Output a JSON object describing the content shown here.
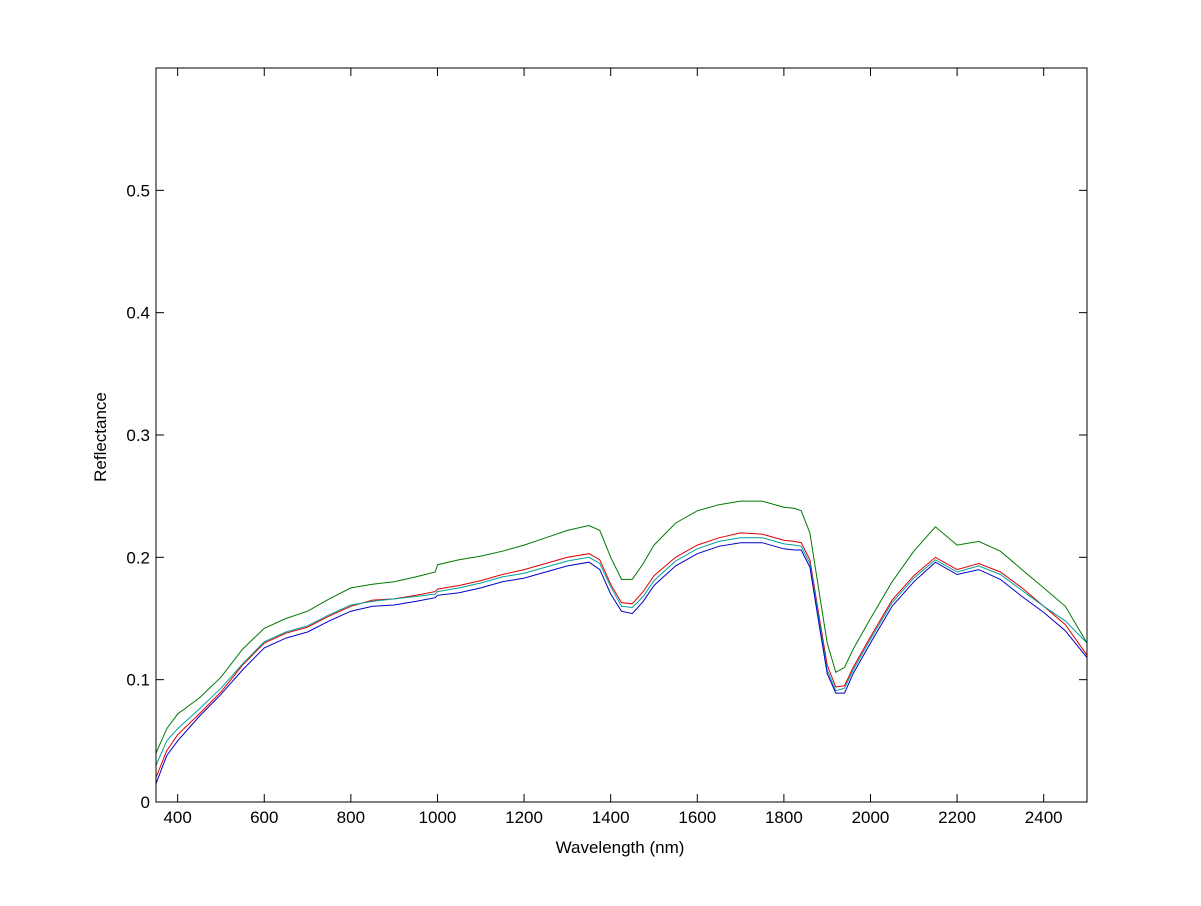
{
  "chart_data": {
    "type": "line",
    "title": "",
    "xlabel": "Wavelength (nm)",
    "ylabel": "Reflectance",
    "xlim": [
      350,
      2500
    ],
    "ylim": [
      0,
      0.6
    ],
    "x_ticks": [
      400,
      600,
      800,
      1000,
      1200,
      1400,
      1600,
      1800,
      2000,
      2200,
      2400
    ],
    "y_ticks": [
      0,
      0.1,
      0.2,
      0.3,
      0.4,
      0.5
    ],
    "x_tick_labels": [
      "400",
      "600",
      "800",
      "1000",
      "1200",
      "1400",
      "1600",
      "1800",
      "2000",
      "2200",
      "2400"
    ],
    "y_tick_labels": [
      "0",
      "0.1",
      "0.2",
      "0.3",
      "0.4",
      "0.5"
    ],
    "grid": false,
    "legend": "none",
    "x": [
      350,
      375,
      400,
      450,
      500,
      550,
      600,
      650,
      700,
      750,
      800,
      850,
      900,
      950,
      995,
      1000,
      1050,
      1100,
      1150,
      1200,
      1250,
      1300,
      1350,
      1375,
      1400,
      1425,
      1450,
      1475,
      1500,
      1550,
      1600,
      1650,
      1700,
      1750,
      1800,
      1825,
      1840,
      1860,
      1880,
      1900,
      1920,
      1940,
      1960,
      2000,
      2050,
      2100,
      2150,
      2200,
      2250,
      2300,
      2350,
      2400,
      2450,
      2500
    ],
    "series": [
      {
        "color": "#007a00",
        "values": [
          0.04,
          0.06,
          0.072,
          0.085,
          0.102,
          0.125,
          0.142,
          0.15,
          0.156,
          0.166,
          0.175,
          0.178,
          0.18,
          0.184,
          0.188,
          0.194,
          0.198,
          0.201,
          0.205,
          0.21,
          0.216,
          0.222,
          0.226,
          0.222,
          0.2,
          0.182,
          0.182,
          0.195,
          0.21,
          0.228,
          0.238,
          0.243,
          0.246,
          0.246,
          0.241,
          0.24,
          0.238,
          0.22,
          0.175,
          0.13,
          0.106,
          0.11,
          0.125,
          0.15,
          0.18,
          0.205,
          0.225,
          0.21,
          0.213,
          0.205,
          0.19,
          0.175,
          0.16,
          0.13
        ]
      },
      {
        "color": "#e00000",
        "values": [
          0.02,
          0.042,
          0.055,
          0.072,
          0.09,
          0.112,
          0.13,
          0.138,
          0.143,
          0.152,
          0.16,
          0.165,
          0.166,
          0.169,
          0.172,
          0.174,
          0.177,
          0.181,
          0.186,
          0.19,
          0.195,
          0.2,
          0.203,
          0.198,
          0.178,
          0.163,
          0.162,
          0.172,
          0.185,
          0.2,
          0.21,
          0.216,
          0.22,
          0.219,
          0.214,
          0.213,
          0.212,
          0.198,
          0.155,
          0.112,
          0.094,
          0.095,
          0.11,
          0.135,
          0.165,
          0.185,
          0.2,
          0.19,
          0.195,
          0.188,
          0.175,
          0.16,
          0.145,
          0.12
        ]
      },
      {
        "color": "#00a0a0",
        "values": [
          0.03,
          0.05,
          0.06,
          0.076,
          0.093,
          0.113,
          0.131,
          0.139,
          0.144,
          0.153,
          0.161,
          0.164,
          0.166,
          0.168,
          0.17,
          0.172,
          0.175,
          0.179,
          0.184,
          0.187,
          0.192,
          0.197,
          0.2,
          0.195,
          0.176,
          0.16,
          0.159,
          0.168,
          0.181,
          0.197,
          0.207,
          0.213,
          0.216,
          0.216,
          0.211,
          0.21,
          0.209,
          0.195,
          0.152,
          0.108,
          0.091,
          0.093,
          0.108,
          0.133,
          0.163,
          0.183,
          0.198,
          0.188,
          0.193,
          0.186,
          0.173,
          0.16,
          0.148,
          0.13
        ]
      },
      {
        "color": "#0000c8",
        "values": [
          0.015,
          0.038,
          0.05,
          0.07,
          0.088,
          0.108,
          0.126,
          0.134,
          0.139,
          0.148,
          0.156,
          0.16,
          0.161,
          0.164,
          0.167,
          0.169,
          0.171,
          0.175,
          0.18,
          0.183,
          0.188,
          0.193,
          0.196,
          0.19,
          0.17,
          0.156,
          0.154,
          0.164,
          0.177,
          0.193,
          0.203,
          0.209,
          0.212,
          0.212,
          0.207,
          0.206,
          0.206,
          0.192,
          0.148,
          0.105,
          0.089,
          0.089,
          0.105,
          0.13,
          0.16,
          0.18,
          0.196,
          0.186,
          0.19,
          0.182,
          0.168,
          0.155,
          0.14,
          0.118
        ]
      }
    ]
  }
}
